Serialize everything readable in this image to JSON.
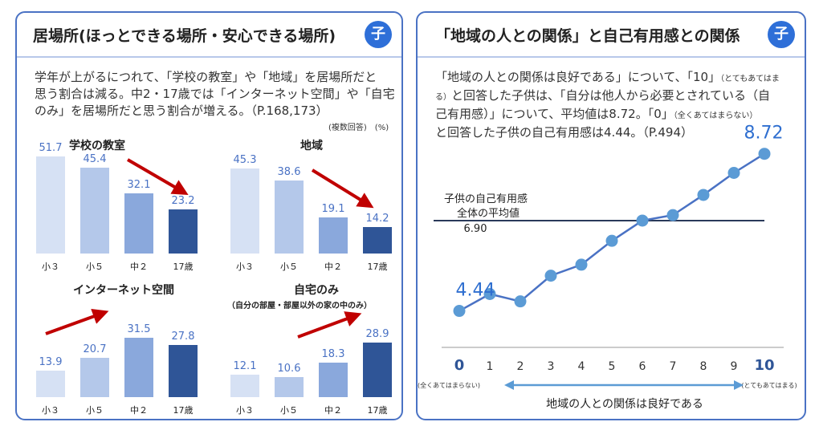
{
  "left": {
    "title": "居場所(ほっとできる場所・安心できる場所)",
    "badge": "子",
    "desc_line1": "学年が上がるにつれて、「学校の教室」や「地域」を居場所だと",
    "desc_line2": "思う割合は減る。中2・17歳では「インターネット空間」や「自宅",
    "desc_line3": "のみ」を居場所だと思う割合が増える。（P.168,173）",
    "unit_note": "(複数回答)　(%)",
    "sub_note": "（自分の部屋・部屋以外の家の中のみ）"
  },
  "right": {
    "title": "「地域の人との関係」と自己有用感との関係",
    "badge": "子",
    "desc_line1a": "「地域の人との関係は良好である」について、「10」",
    "desc_line1b": "（とてもあてはま",
    "desc_line2a": "る）",
    "desc_line2b": "と回答した子供は、「自分は他人から必要とされている（自",
    "desc_line3a": "己有用感）」について、平均値は8.72。「0」",
    "desc_line3b": "（全くあてはまらない）",
    "desc_line4": "と回答した子供の自己有用感は4.44。（P.494）"
  },
  "chart_data": [
    {
      "type": "bar",
      "title": "学校の教室",
      "categories": [
        "小３",
        "小５",
        "中２",
        "17歳"
      ],
      "values": [
        51.7,
        45.4,
        32.1,
        23.2
      ],
      "value_labels": [
        "51.7",
        "45.4",
        "32.1",
        "23.2"
      ],
      "colors": [
        "#d6e1f4",
        "#b4c8ea",
        "#8aa8dc",
        "#2f5597"
      ],
      "trend": "down"
    },
    {
      "type": "bar",
      "title": "地域",
      "categories": [
        "小３",
        "小５",
        "中２",
        "17歳"
      ],
      "values": [
        45.3,
        38.6,
        19.1,
        14.2
      ],
      "value_labels": [
        "45.3",
        "38.6",
        "19.1",
        "14.2"
      ],
      "colors": [
        "#d6e1f4",
        "#b4c8ea",
        "#8aa8dc",
        "#2f5597"
      ],
      "trend": "down"
    },
    {
      "type": "bar",
      "title": "インターネット空間",
      "categories": [
        "小３",
        "小５",
        "中２",
        "17歳"
      ],
      "values": [
        13.9,
        20.7,
        31.5,
        27.8
      ],
      "value_labels": [
        "13.9",
        "20.7",
        "31.5",
        "27.8"
      ],
      "colors": [
        "#d6e1f4",
        "#b4c8ea",
        "#8aa8dc",
        "#2f5597"
      ],
      "trend": "up"
    },
    {
      "type": "bar",
      "title": "自宅のみ",
      "categories": [
        "小３",
        "小５",
        "中２",
        "17歳"
      ],
      "values": [
        12.1,
        10.6,
        18.3,
        28.9
      ],
      "value_labels": [
        "12.1",
        "10.6",
        "18.3",
        "28.9"
      ],
      "colors": [
        "#d6e1f4",
        "#b4c8ea",
        "#8aa8dc",
        "#2f5597"
      ],
      "trend": "up"
    },
    {
      "type": "line",
      "x": [
        0,
        1,
        2,
        3,
        4,
        5,
        6,
        7,
        8,
        9,
        10
      ],
      "x_tick_labels": [
        "0",
        "1",
        "2",
        "3",
        "4",
        "5",
        "6",
        "7",
        "8",
        "9",
        "10"
      ],
      "y": [
        4.44,
        4.9,
        4.7,
        5.4,
        5.7,
        6.35,
        6.9,
        7.05,
        7.6,
        8.2,
        8.72
      ],
      "ylim": [
        3.6,
        9.5
      ],
      "start_label": "4.44",
      "end_label": "8.72",
      "reference_value": 6.9,
      "reference_label_line1": "子供の自己有用感",
      "reference_label_line2": "全体の平均値",
      "reference_label_value": "6.90",
      "x_low_label": "(全くあてはまらない)",
      "x_high_label": "(とてもあてはまる)",
      "xlabel": "地域の人との関係は良好である",
      "line_color": "#4a72c4",
      "point_color": "#5b9bd5",
      "reference_color": "#2a3a5a"
    }
  ]
}
